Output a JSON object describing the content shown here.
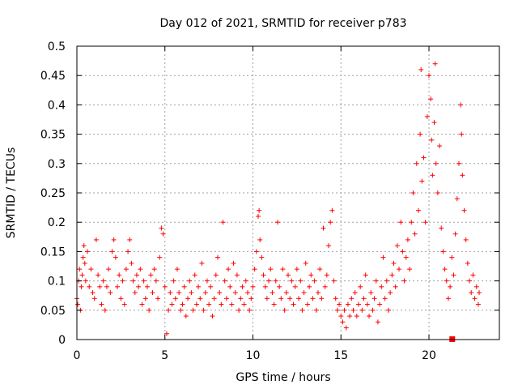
{
  "chart_data": {
    "type": "scatter",
    "title": "Day 012 of 2021, SRMTID for receiver p783",
    "xlabel": "GPS time / hours",
    "ylabel": "SRMTID / TECUs",
    "xlim": [
      0,
      24
    ],
    "ylim": [
      0,
      0.5
    ],
    "xticks": [
      0,
      5,
      10,
      15,
      20
    ],
    "xtick_labels": [
      "0",
      "5",
      "10",
      "15",
      "20"
    ],
    "yticks": [
      0,
      0.05,
      0.1,
      0.15,
      0.2,
      0.25,
      0.3,
      0.35,
      0.4,
      0.45,
      0.5
    ],
    "ytick_labels": [
      "0",
      "0.05",
      "0.1",
      "0.15",
      "0.2",
      "0.25",
      "0.3",
      "0.35",
      "0.4",
      "0.45",
      "0.5"
    ],
    "grid": true,
    "marker": "+",
    "color": "#ff0000",
    "series": [
      {
        "name": "SRMTID",
        "points": [
          [
            0.0,
            0.07
          ],
          [
            0.05,
            0.06
          ],
          [
            0.1,
            0.1
          ],
          [
            0.15,
            0.12
          ],
          [
            0.2,
            0.05
          ],
          [
            0.25,
            0.09
          ],
          [
            0.3,
            0.11
          ],
          [
            0.35,
            0.14
          ],
          [
            0.4,
            0.16
          ],
          [
            0.45,
            0.13
          ],
          [
            0.5,
            0.1
          ],
          [
            0.6,
            0.15
          ],
          [
            0.7,
            0.09
          ],
          [
            0.8,
            0.12
          ],
          [
            0.9,
            0.08
          ],
          [
            1.0,
            0.07
          ],
          [
            1.1,
            0.17
          ],
          [
            1.2,
            0.11
          ],
          [
            1.3,
            0.09
          ],
          [
            1.4,
            0.06
          ],
          [
            1.5,
            0.1
          ],
          [
            1.6,
            0.05
          ],
          [
            1.7,
            0.09
          ],
          [
            1.8,
            0.12
          ],
          [
            1.9,
            0.08
          ],
          [
            2.0,
            0.15
          ],
          [
            2.1,
            0.17
          ],
          [
            2.2,
            0.14
          ],
          [
            2.3,
            0.09
          ],
          [
            2.4,
            0.11
          ],
          [
            2.5,
            0.07
          ],
          [
            2.6,
            0.1
          ],
          [
            2.7,
            0.06
          ],
          [
            2.8,
            0.12
          ],
          [
            2.9,
            0.15
          ],
          [
            3.0,
            0.17
          ],
          [
            3.1,
            0.13
          ],
          [
            3.2,
            0.1
          ],
          [
            3.3,
            0.08
          ],
          [
            3.4,
            0.11
          ],
          [
            3.5,
            0.09
          ],
          [
            3.6,
            0.12
          ],
          [
            3.7,
            0.06
          ],
          [
            3.8,
            0.1
          ],
          [
            3.9,
            0.07
          ],
          [
            4.0,
            0.09
          ],
          [
            4.1,
            0.05
          ],
          [
            4.2,
            0.11
          ],
          [
            4.3,
            0.08
          ],
          [
            4.4,
            0.12
          ],
          [
            4.5,
            0.1
          ],
          [
            4.6,
            0.07
          ],
          [
            4.7,
            0.14
          ],
          [
            4.8,
            0.19
          ],
          [
            4.9,
            0.18
          ],
          [
            5.0,
            0.09
          ],
          [
            5.1,
            0.01
          ],
          [
            5.2,
            0.05
          ],
          [
            5.3,
            0.08
          ],
          [
            5.4,
            0.06
          ],
          [
            5.5,
            0.1
          ],
          [
            5.6,
            0.07
          ],
          [
            5.7,
            0.12
          ],
          [
            5.8,
            0.08
          ],
          [
            5.9,
            0.05
          ],
          [
            6.0,
            0.06
          ],
          [
            6.1,
            0.09
          ],
          [
            6.2,
            0.04
          ],
          [
            6.3,
            0.07
          ],
          [
            6.4,
            0.1
          ],
          [
            6.5,
            0.08
          ],
          [
            6.6,
            0.05
          ],
          [
            6.7,
            0.11
          ],
          [
            6.8,
            0.06
          ],
          [
            6.9,
            0.09
          ],
          [
            7.0,
            0.07
          ],
          [
            7.1,
            0.13
          ],
          [
            7.2,
            0.05
          ],
          [
            7.3,
            0.08
          ],
          [
            7.4,
            0.1
          ],
          [
            7.5,
            0.06
          ],
          [
            7.6,
            0.09
          ],
          [
            7.7,
            0.04
          ],
          [
            7.8,
            0.07
          ],
          [
            7.9,
            0.11
          ],
          [
            8.0,
            0.14
          ],
          [
            8.1,
            0.08
          ],
          [
            8.2,
            0.06
          ],
          [
            8.3,
            0.2
          ],
          [
            8.4,
            0.1
          ],
          [
            8.5,
            0.07
          ],
          [
            8.6,
            0.12
          ],
          [
            8.7,
            0.09
          ],
          [
            8.8,
            0.06
          ],
          [
            8.9,
            0.13
          ],
          [
            9.0,
            0.08
          ],
          [
            9.1,
            0.11
          ],
          [
            9.2,
            0.05
          ],
          [
            9.3,
            0.07
          ],
          [
            9.4,
            0.09
          ],
          [
            9.5,
            0.06
          ],
          [
            9.6,
            0.1
          ],
          [
            9.7,
            0.08
          ],
          [
            9.8,
            0.05
          ],
          [
            9.9,
            0.07
          ],
          [
            10.0,
            0.09
          ],
          [
            10.1,
            0.12
          ],
          [
            10.2,
            0.15
          ],
          [
            10.3,
            0.21
          ],
          [
            10.35,
            0.22
          ],
          [
            10.4,
            0.17
          ],
          [
            10.5,
            0.14
          ],
          [
            10.6,
            0.11
          ],
          [
            10.7,
            0.09
          ],
          [
            10.8,
            0.07
          ],
          [
            10.9,
            0.1
          ],
          [
            11.0,
            0.12
          ],
          [
            11.1,
            0.08
          ],
          [
            11.2,
            0.06
          ],
          [
            11.3,
            0.1
          ],
          [
            11.4,
            0.2
          ],
          [
            11.5,
            0.09
          ],
          [
            11.6,
            0.07
          ],
          [
            11.7,
            0.12
          ],
          [
            11.8,
            0.05
          ],
          [
            11.9,
            0.08
          ],
          [
            12.0,
            0.11
          ],
          [
            12.1,
            0.07
          ],
          [
            12.2,
            0.1
          ],
          [
            12.3,
            0.06
          ],
          [
            12.4,
            0.09
          ],
          [
            12.5,
            0.12
          ],
          [
            12.6,
            0.07
          ],
          [
            12.7,
            0.1
          ],
          [
            12.8,
            0.05
          ],
          [
            12.9,
            0.08
          ],
          [
            13.0,
            0.13
          ],
          [
            13.1,
            0.06
          ],
          [
            13.2,
            0.09
          ],
          [
            13.3,
            0.11
          ],
          [
            13.4,
            0.07
          ],
          [
            13.5,
            0.1
          ],
          [
            13.6,
            0.05
          ],
          [
            13.7,
            0.08
          ],
          [
            13.8,
            0.12
          ],
          [
            13.9,
            0.07
          ],
          [
            14.0,
            0.19
          ],
          [
            14.1,
            0.09
          ],
          [
            14.2,
            0.11
          ],
          [
            14.3,
            0.16
          ],
          [
            14.4,
            0.2
          ],
          [
            14.5,
            0.22
          ],
          [
            14.6,
            0.1
          ],
          [
            14.7,
            0.07
          ],
          [
            14.8,
            0.05
          ],
          [
            14.9,
            0.06
          ],
          [
            15.0,
            0.04
          ],
          [
            15.1,
            0.03
          ],
          [
            15.2,
            0.05
          ],
          [
            15.3,
            0.02
          ],
          [
            15.4,
            0.06
          ],
          [
            15.5,
            0.04
          ],
          [
            15.6,
            0.07
          ],
          [
            15.7,
            0.05
          ],
          [
            15.8,
            0.08
          ],
          [
            15.9,
            0.04
          ],
          [
            16.0,
            0.06
          ],
          [
            16.1,
            0.09
          ],
          [
            16.2,
            0.05
          ],
          [
            16.3,
            0.07
          ],
          [
            16.4,
            0.11
          ],
          [
            16.5,
            0.06
          ],
          [
            16.6,
            0.04
          ],
          [
            16.7,
            0.08
          ],
          [
            16.8,
            0.05
          ],
          [
            16.9,
            0.07
          ],
          [
            17.0,
            0.1
          ],
          [
            17.1,
            0.03
          ],
          [
            17.2,
            0.06
          ],
          [
            17.3,
            0.09
          ],
          [
            17.4,
            0.14
          ],
          [
            17.5,
            0.07
          ],
          [
            17.6,
            0.1
          ],
          [
            17.7,
            0.05
          ],
          [
            17.8,
            0.08
          ],
          [
            17.9,
            0.11
          ],
          [
            18.0,
            0.13
          ],
          [
            18.1,
            0.09
          ],
          [
            18.2,
            0.16
          ],
          [
            18.3,
            0.12
          ],
          [
            18.4,
            0.2
          ],
          [
            18.5,
            0.15
          ],
          [
            18.6,
            0.1
          ],
          [
            18.7,
            0.14
          ],
          [
            18.8,
            0.17
          ],
          [
            18.9,
            0.12
          ],
          [
            19.0,
            0.2
          ],
          [
            19.1,
            0.25
          ],
          [
            19.2,
            0.18
          ],
          [
            19.3,
            0.3
          ],
          [
            19.4,
            0.22
          ],
          [
            19.5,
            0.35
          ],
          [
            19.55,
            0.46
          ],
          [
            19.6,
            0.27
          ],
          [
            19.7,
            0.31
          ],
          [
            19.8,
            0.2
          ],
          [
            19.9,
            0.38
          ],
          [
            20.0,
            0.45
          ],
          [
            20.1,
            0.41
          ],
          [
            20.15,
            0.34
          ],
          [
            20.2,
            0.28
          ],
          [
            20.3,
            0.37
          ],
          [
            20.35,
            0.47
          ],
          [
            20.4,
            0.3
          ],
          [
            20.5,
            0.25
          ],
          [
            20.6,
            0.33
          ],
          [
            20.7,
            0.19
          ],
          [
            20.8,
            0.15
          ],
          [
            20.9,
            0.12
          ],
          [
            21.0,
            0.1
          ],
          [
            21.1,
            0.07
          ],
          [
            21.2,
            0.09
          ],
          [
            21.3,
            0.14
          ],
          [
            21.4,
            0.11
          ],
          [
            21.5,
            0.18
          ],
          [
            21.6,
            0.24
          ],
          [
            21.7,
            0.3
          ],
          [
            21.8,
            0.4
          ],
          [
            21.85,
            0.35
          ],
          [
            21.9,
            0.28
          ],
          [
            22.0,
            0.22
          ],
          [
            22.1,
            0.17
          ],
          [
            22.2,
            0.13
          ],
          [
            22.3,
            0.1
          ],
          [
            22.4,
            0.08
          ],
          [
            22.5,
            0.11
          ],
          [
            22.6,
            0.07
          ],
          [
            22.7,
            0.09
          ],
          [
            22.8,
            0.06
          ],
          [
            22.85,
            0.08
          ]
        ],
        "marker_square": [
          21.3,
          0.0
        ]
      }
    ]
  }
}
